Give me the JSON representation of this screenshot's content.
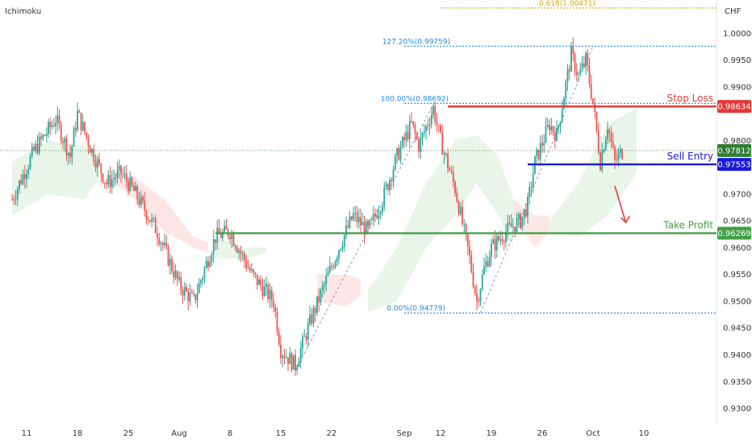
{
  "header": {
    "indicator": "Ichimoku",
    "currency": "CHF"
  },
  "chart_data": {
    "type": "candlestick",
    "ylim": [
      0.927,
      1.0062
    ],
    "y_ticks": [
      {
        "v": 1.0,
        "label": "1.00000"
      },
      {
        "v": 0.995,
        "label": "0.99500"
      },
      {
        "v": 0.99,
        "label": "0.99000"
      },
      {
        "v": 0.98,
        "label": "0.98000"
      },
      {
        "v": 0.97,
        "label": "0.97000"
      },
      {
        "v": 0.965,
        "label": "0.96500"
      },
      {
        "v": 0.96,
        "label": "0.96000"
      },
      {
        "v": 0.955,
        "label": "0.95500"
      },
      {
        "v": 0.95,
        "label": "0.95000"
      },
      {
        "v": 0.945,
        "label": "0.94500"
      },
      {
        "v": 0.94,
        "label": "0.94000"
      },
      {
        "v": 0.935,
        "label": "0.93500"
      },
      {
        "v": 0.93,
        "label": "0.93000"
      }
    ],
    "x_ticks": [
      "11",
      "18",
      "25",
      "Aug",
      "8",
      "15",
      "22",
      "Sep",
      "12",
      "19",
      "26",
      "Oct",
      "10"
    ],
    "x_tick_days": [
      0,
      7,
      14,
      21,
      28,
      35,
      42,
      52,
      57,
      64,
      71,
      78,
      85
    ],
    "levels": [
      {
        "name": "stop_loss",
        "label": "Stop Loss",
        "value": 0.98634,
        "tag": "0.98634",
        "color": "#e53935",
        "from_day": 58
      },
      {
        "name": "current",
        "label": "",
        "value": 0.97812,
        "tag": "0.97812",
        "color": "#2e7d32",
        "from_day": -2
      },
      {
        "name": "sell_entry",
        "label": "Sell Entry",
        "value": 0.97553,
        "tag": "0.97553",
        "color": "#1a1adb",
        "from_day": 69
      },
      {
        "name": "take_profit",
        "label": "Take Profit",
        "value": 0.96269,
        "tag": "0.96269",
        "color": "#43a047",
        "from_day": 26
      }
    ],
    "fibonacci": [
      {
        "label": "0.618(1.00471)",
        "value": 1.00471,
        "color": "#e0a800"
      },
      {
        "label": "127.20%(0.99759)",
        "value": 0.99759,
        "color": "#1e88e5"
      },
      {
        "label": "100.00%(0.98692)",
        "value": 0.98692,
        "color": "#1e88e5"
      },
      {
        "label": "0.00%(0.94779)",
        "value": 0.94779,
        "color": "#1e88e5"
      }
    ],
    "anchors": [
      {
        "d": -2,
        "v": 0.969
      },
      {
        "d": 1,
        "v": 0.978
      },
      {
        "d": 4,
        "v": 0.984
      },
      {
        "d": 6,
        "v": 0.977
      },
      {
        "d": 7,
        "v": 0.985
      },
      {
        "d": 9,
        "v": 0.978
      },
      {
        "d": 11,
        "v": 0.972
      },
      {
        "d": 13,
        "v": 0.974
      },
      {
        "d": 15,
        "v": 0.97
      },
      {
        "d": 18,
        "v": 0.963
      },
      {
        "d": 21,
        "v": 0.953
      },
      {
        "d": 23,
        "v": 0.95
      },
      {
        "d": 26,
        "v": 0.962
      },
      {
        "d": 28,
        "v": 0.963
      },
      {
        "d": 31,
        "v": 0.955
      },
      {
        "d": 34,
        "v": 0.95
      },
      {
        "d": 35,
        "v": 0.941
      },
      {
        "d": 37,
        "v": 0.938
      },
      {
        "d": 39,
        "v": 0.946
      },
      {
        "d": 41,
        "v": 0.953
      },
      {
        "d": 43,
        "v": 0.96
      },
      {
        "d": 45,
        "v": 0.966
      },
      {
        "d": 47,
        "v": 0.963
      },
      {
        "d": 49,
        "v": 0.969
      },
      {
        "d": 51,
        "v": 0.977
      },
      {
        "d": 53,
        "v": 0.983
      },
      {
        "d": 54,
        "v": 0.979
      },
      {
        "d": 56,
        "v": 0.986
      },
      {
        "d": 57,
        "v": 0.98
      },
      {
        "d": 59,
        "v": 0.971
      },
      {
        "d": 61,
        "v": 0.958
      },
      {
        "d": 62,
        "v": 0.95
      },
      {
        "d": 63,
        "v": 0.956
      },
      {
        "d": 64,
        "v": 0.96
      },
      {
        "d": 66,
        "v": 0.963
      },
      {
        "d": 68,
        "v": 0.965
      },
      {
        "d": 69,
        "v": 0.968
      },
      {
        "d": 70,
        "v": 0.976
      },
      {
        "d": 72,
        "v": 0.983
      },
      {
        "d": 73,
        "v": 0.981
      },
      {
        "d": 75,
        "v": 0.996
      },
      {
        "d": 76,
        "v": 0.992
      },
      {
        "d": 77,
        "v": 0.995
      },
      {
        "d": 78,
        "v": 0.987
      },
      {
        "d": 79,
        "v": 0.976
      },
      {
        "d": 80,
        "v": 0.983
      },
      {
        "d": 81,
        "v": 0.976
      },
      {
        "d": 82,
        "v": 0.978
      }
    ],
    "cloud_segments": [
      {
        "dir": "bull",
        "pts": [
          [
            -2,
            0.976,
            0.966
          ],
          [
            3,
            0.98,
            0.97
          ],
          [
            8,
            0.979,
            0.969
          ],
          [
            10,
            0.977,
            0.973
          ]
        ]
      },
      {
        "dir": "bear",
        "pts": [
          [
            12,
            0.974,
            0.972
          ],
          [
            15,
            0.973,
            0.969
          ],
          [
            19,
            0.969,
            0.963
          ],
          [
            23,
            0.962,
            0.96
          ],
          [
            25,
            0.961,
            0.959
          ]
        ]
      },
      {
        "dir": "bull",
        "pts": [
          [
            26,
            0.962,
            0.958
          ],
          [
            30,
            0.96,
            0.958
          ],
          [
            33,
            0.96,
            0.959
          ]
        ]
      },
      {
        "dir": "bear",
        "pts": [
          [
            40,
            0.955,
            0.95
          ],
          [
            44,
            0.955,
            0.949
          ],
          [
            46,
            0.954,
            0.951
          ]
        ]
      },
      {
        "dir": "bull",
        "pts": [
          [
            47,
            0.952,
            0.948
          ],
          [
            51,
            0.96,
            0.95
          ],
          [
            55,
            0.972,
            0.96
          ],
          [
            59,
            0.98,
            0.966
          ],
          [
            62,
            0.981,
            0.972
          ],
          [
            65,
            0.977,
            0.966
          ],
          [
            67,
            0.969,
            0.96
          ]
        ]
      },
      {
        "dir": "bear",
        "pts": [
          [
            67,
            0.969,
            0.966
          ],
          [
            70,
            0.966,
            0.96
          ],
          [
            72,
            0.966,
            0.963
          ]
        ]
      },
      {
        "dir": "bull",
        "pts": [
          [
            72,
            0.965,
            0.963
          ],
          [
            76,
            0.972,
            0.962
          ],
          [
            80,
            0.983,
            0.966
          ],
          [
            84,
            0.986,
            0.974
          ]
        ]
      }
    ],
    "arrow": {
      "from": [
        81,
        0.9715
      ],
      "to": [
        82.5,
        0.9647
      ],
      "color": "#e53935"
    }
  }
}
